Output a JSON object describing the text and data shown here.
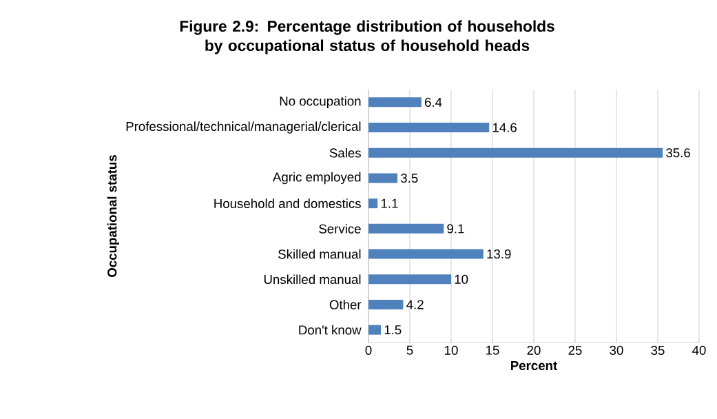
{
  "chart_data": {
    "type": "bar",
    "orientation": "horizontal",
    "title": "**Figure 2.9: Percentage distribution of households by occupational status of household heads**",
    "xlabel": "**Percent**",
    "ylabel": "**Occupational status**",
    "categories": [
      "No occupation",
      "Professional/technical/managerial/clerical",
      "Sales",
      "Agric employed",
      "Household and domestics",
      "Service",
      "Skilled manual",
      "Unskilled manual",
      "Other",
      "Don't know"
    ],
    "values": [
      6.4,
      14.6,
      35.6,
      3.5,
      1.1,
      9.1,
      13.9,
      10,
      4.2,
      1.5
    ],
    "color": "#4f81bd",
    "xlim": [
      0,
      40
    ],
    "xticks": [
      0,
      5,
      10,
      15,
      20,
      25,
      30,
      35,
      40
    ],
    "grid": "x",
    "data_labels": true
  }
}
